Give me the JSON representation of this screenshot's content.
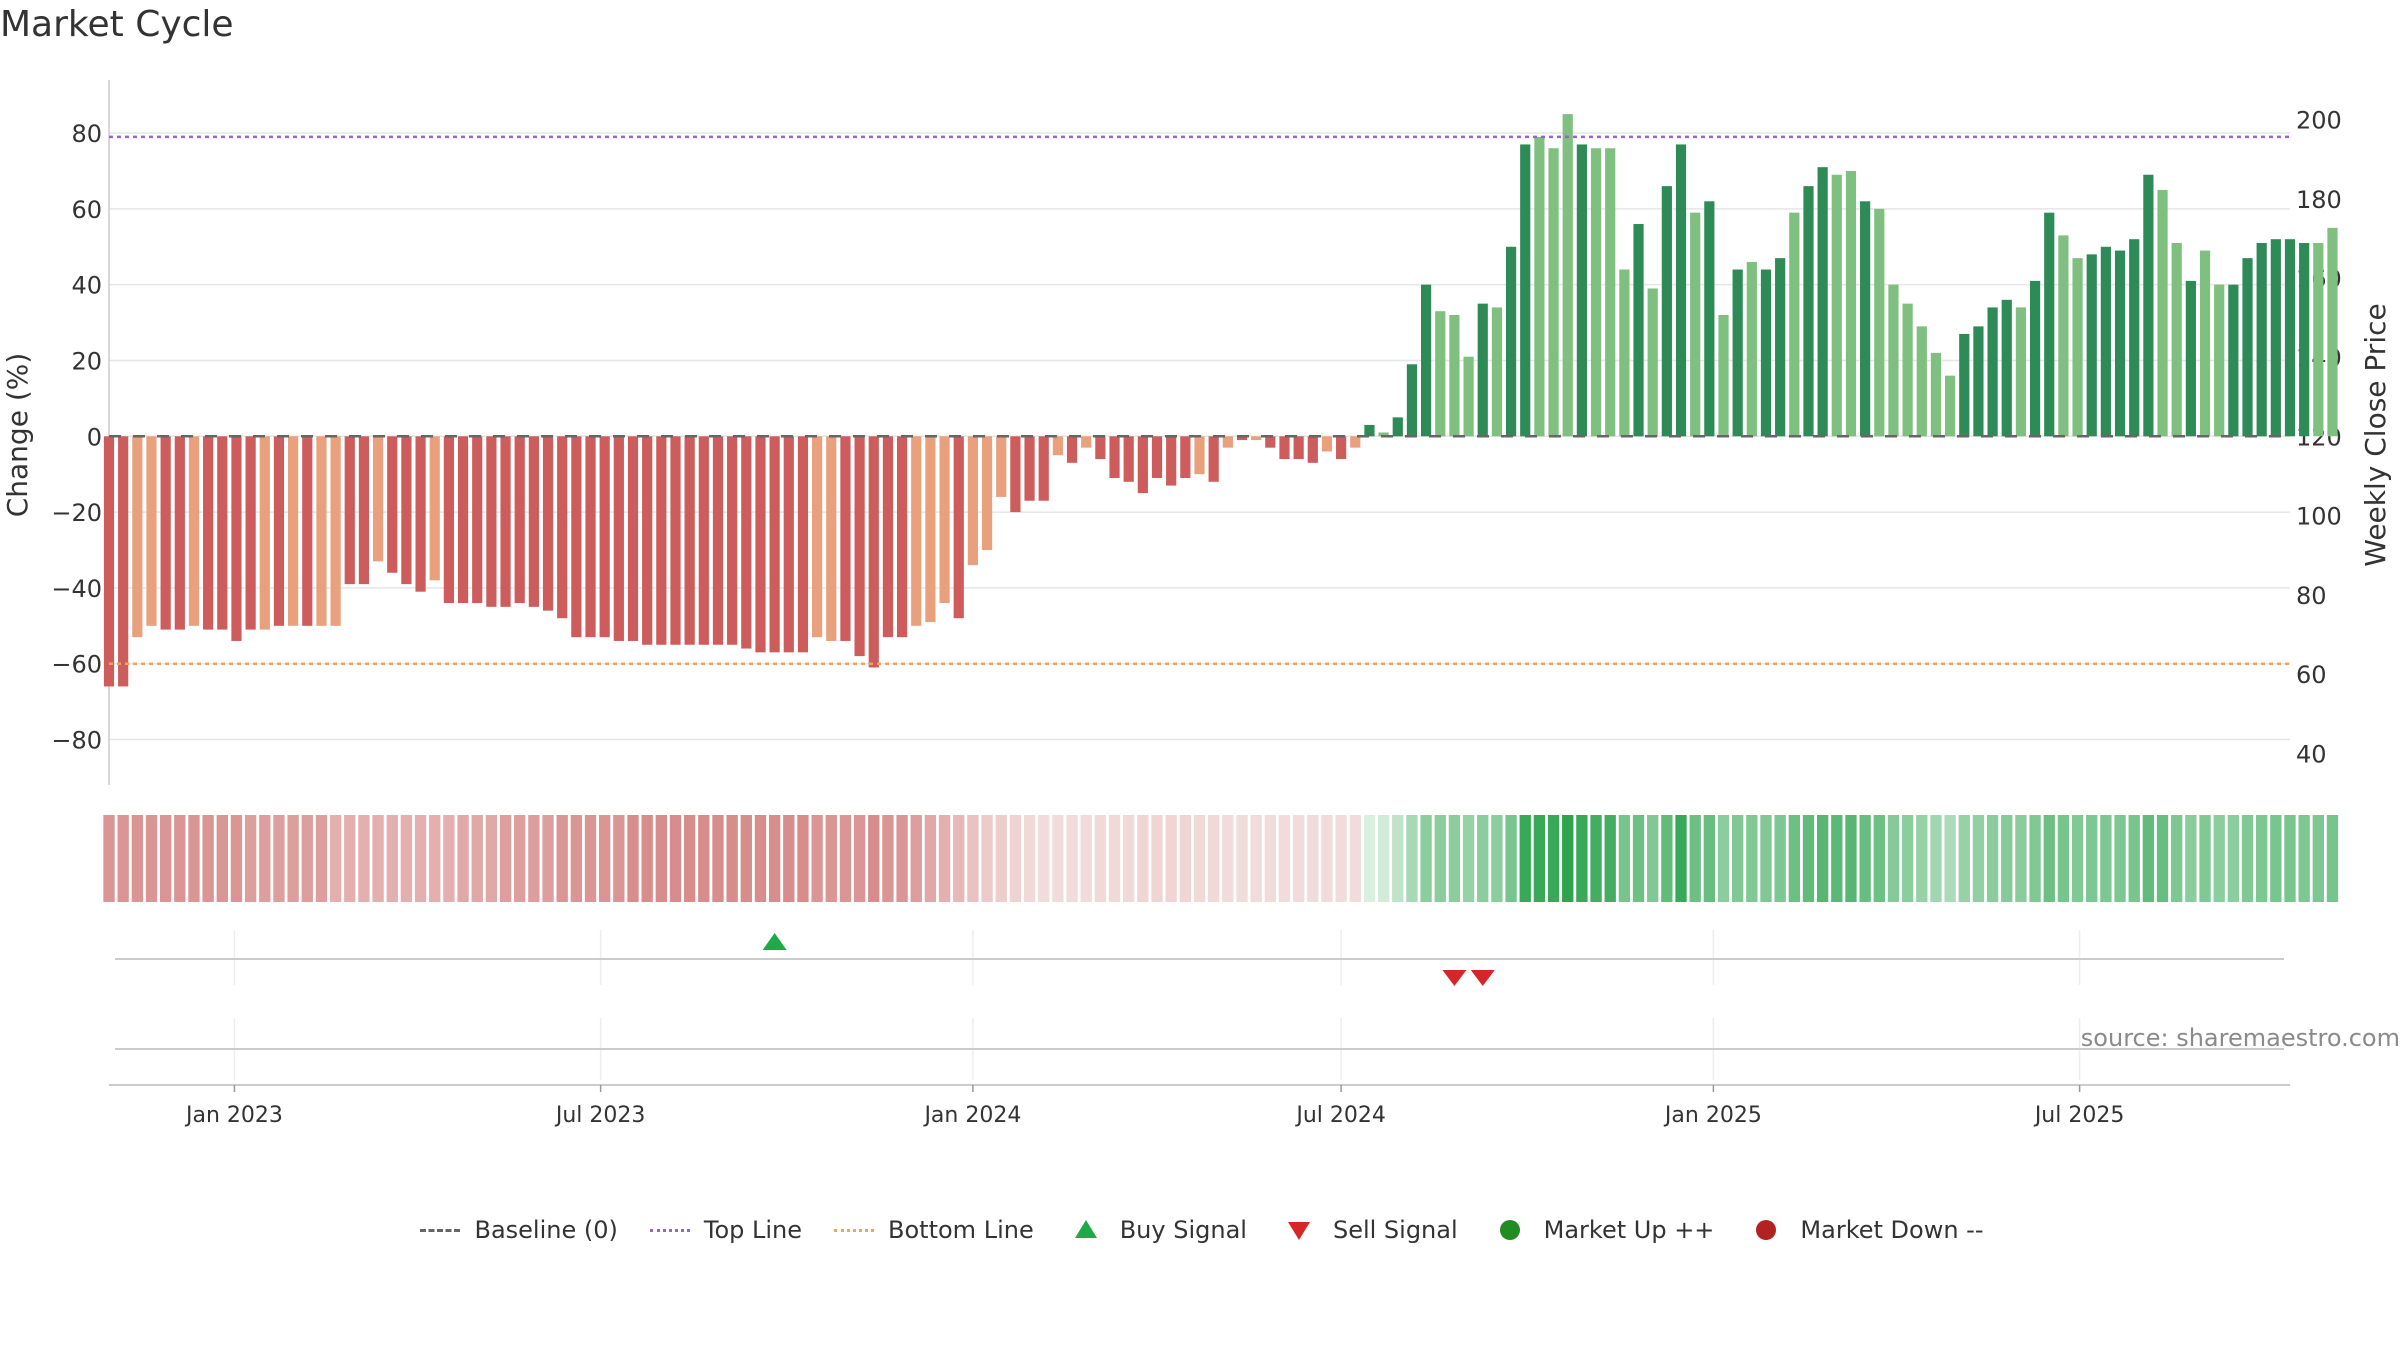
{
  "title": "Market Cycle",
  "source": "source: sharemaestro.com",
  "colors": {
    "neg_dark": "#cd5c5c",
    "neg_light": "#e9a07d",
    "pos_dark": "#2e8b57",
    "pos_light": "#7fbf7f",
    "top_line": "#9467bd",
    "bottom_line": "#f0a35c",
    "baseline": "#666666",
    "buy": "#1faa4a",
    "sell": "#d62728",
    "market_up": "#228b22",
    "market_down": "#b22222"
  },
  "legend": [
    {
      "label": "Baseline (0)",
      "icon": "dash-line-icon"
    },
    {
      "label": "Top Line",
      "icon": "dotted-purple-line-icon"
    },
    {
      "label": "Bottom Line",
      "icon": "dotted-orange-line-icon"
    },
    {
      "label": "Buy Signal",
      "icon": "triangle-up-icon"
    },
    {
      "label": "Sell Signal",
      "icon": "triangle-down-icon"
    },
    {
      "label": "Market Up ++",
      "icon": "green-circle-icon"
    },
    {
      "label": "Market Down --",
      "icon": "red-circle-icon"
    }
  ],
  "chart_data": {
    "type": "bar",
    "title": "Market Cycle",
    "ylabel": "Change (%)",
    "y2label": "Weekly Close Price",
    "ylim": [
      -92,
      94
    ],
    "y2lim": [
      32,
      210
    ],
    "yticks": [
      80,
      60,
      40,
      20,
      0,
      -20,
      -40,
      -60,
      -80
    ],
    "y2ticks": [
      200,
      180,
      160,
      140,
      120,
      100,
      80,
      60,
      40
    ],
    "x_start": "2022-10-31",
    "x_end": "2025-10-13",
    "xticks": [
      {
        "date": "2023-01-01",
        "label": "Jan 2023"
      },
      {
        "date": "2023-07-01",
        "label": "Jul 2023"
      },
      {
        "date": "2024-01-01",
        "label": "Jan 2024"
      },
      {
        "date": "2024-07-01",
        "label": "Jul 2024"
      },
      {
        "date": "2025-01-01",
        "label": "Jan 2025"
      },
      {
        "date": "2025-07-01",
        "label": "Jul 2025"
      }
    ],
    "top_line": 79,
    "bottom_line": -60,
    "baseline": 0,
    "grid": true,
    "legend_position": "bottom",
    "week_start": "2022-10-31",
    "week_step_days": 7,
    "values": [
      -66,
      -66,
      -53,
      -50,
      -51,
      -51,
      -50,
      -51,
      -51,
      -54,
      -51,
      -51,
      -50,
      -50,
      -50,
      -50,
      -50,
      -39,
      -39,
      -33,
      -36,
      -39,
      -41,
      -38,
      -44,
      -44,
      -44,
      -45,
      -45,
      -44,
      -45,
      -46,
      -48,
      -53,
      -53,
      -53,
      -54,
      -54,
      -55,
      -55,
      -55,
      -55,
      -55,
      -55,
      -55,
      -56,
      -57,
      -57,
      -57,
      -57,
      -53,
      -54,
      -54,
      -58,
      -61,
      -53,
      -53,
      -50,
      -49,
      -44,
      -48,
      -34,
      -30,
      -16,
      -20,
      -17,
      -17,
      -5,
      -7,
      -3,
      -6,
      -11,
      -12,
      -15,
      -11,
      -13,
      -11,
      -10,
      -12,
      -3,
      -1,
      -1,
      -3,
      -6,
      -6,
      -7,
      -4,
      -6,
      -3,
      3,
      1,
      5,
      19,
      40,
      33,
      32,
      21,
      35,
      34,
      50,
      77,
      79,
      76,
      85,
      77,
      76,
      76,
      44,
      56,
      39,
      66,
      77,
      59,
      62,
      32,
      44,
      46,
      44,
      47,
      59,
      66,
      71,
      69,
      70,
      62,
      60,
      40,
      35,
      29,
      22,
      16,
      27,
      29,
      34,
      36,
      34,
      41,
      59,
      53,
      47,
      48,
      50,
      49,
      52,
      69,
      65,
      51,
      41,
      49,
      40,
      40,
      47,
      51,
      52,
      52,
      51,
      51,
      55
    ],
    "shades": [
      0,
      0,
      1,
      1,
      0,
      0,
      1,
      0,
      0,
      0,
      0,
      1,
      0,
      1,
      0,
      1,
      1,
      0,
      0,
      1,
      0,
      0,
      0,
      1,
      0,
      0,
      0,
      0,
      0,
      0,
      0,
      0,
      0,
      0,
      0,
      0,
      0,
      0,
      0,
      0,
      0,
      0,
      0,
      0,
      0,
      0,
      0,
      0,
      0,
      0,
      1,
      1,
      0,
      0,
      0,
      0,
      0,
      1,
      1,
      1,
      0,
      1,
      1,
      1,
      0,
      0,
      0,
      1,
      0,
      1,
      0,
      0,
      0,
      0,
      0,
      0,
      0,
      1,
      0,
      1,
      0,
      1,
      0,
      0,
      0,
      0,
      1,
      0,
      1,
      0,
      1,
      0,
      0,
      0,
      1,
      1,
      1,
      0,
      1,
      0,
      0,
      1,
      1,
      1,
      0,
      1,
      1,
      1,
      0,
      1,
      0,
      0,
      1,
      0,
      1,
      0,
      1,
      0,
      0,
      1,
      0,
      0,
      1,
      1,
      0,
      1,
      1,
      1,
      1,
      1,
      1,
      0,
      0,
      0,
      0,
      1,
      0,
      0,
      1,
      1,
      0,
      0,
      0,
      0,
      0,
      1,
      1,
      0,
      1,
      1,
      0,
      0,
      0,
      0,
      0,
      0,
      1,
      1,
      1
    ],
    "regime_strength": [
      0.6,
      0.6,
      0.6,
      0.6,
      0.6,
      0.6,
      0.6,
      0.6,
      0.6,
      0.6,
      0.55,
      0.55,
      0.55,
      0.55,
      0.55,
      0.55,
      0.45,
      0.45,
      0.45,
      0.45,
      0.45,
      0.45,
      0.45,
      0.45,
      0.45,
      0.5,
      0.5,
      0.5,
      0.55,
      0.55,
      0.55,
      0.55,
      0.6,
      0.6,
      0.6,
      0.6,
      0.6,
      0.65,
      0.65,
      0.65,
      0.65,
      0.65,
      0.65,
      0.65,
      0.65,
      0.65,
      0.65,
      0.65,
      0.65,
      0.65,
      0.6,
      0.6,
      0.6,
      0.6,
      0.65,
      0.6,
      0.6,
      0.55,
      0.5,
      0.45,
      0.4,
      0.35,
      0.3,
      0.28,
      0.25,
      0.22,
      0.2,
      0.2,
      0.2,
      0.2,
      0.22,
      0.22,
      0.22,
      0.24,
      0.24,
      0.24,
      0.24,
      0.22,
      0.22,
      0.2,
      0.2,
      0.2,
      0.2,
      0.2,
      0.2,
      0.2,
      0.2,
      0.2,
      0.2,
      0.18,
      0.22,
      0.3,
      0.42,
      0.55,
      0.55,
      0.55,
      0.5,
      0.55,
      0.55,
      0.65,
      0.95,
      0.95,
      0.95,
      1.0,
      0.95,
      0.9,
      0.9,
      0.65,
      0.7,
      0.6,
      0.75,
      0.95,
      0.7,
      0.72,
      0.55,
      0.6,
      0.6,
      0.6,
      0.62,
      0.7,
      0.75,
      0.8,
      0.78,
      0.8,
      0.72,
      0.7,
      0.58,
      0.55,
      0.5,
      0.45,
      0.4,
      0.5,
      0.52,
      0.56,
      0.58,
      0.56,
      0.6,
      0.7,
      0.65,
      0.6,
      0.62,
      0.62,
      0.62,
      0.64,
      0.75,
      0.72,
      0.62,
      0.56,
      0.6,
      0.55,
      0.55,
      0.6,
      0.62,
      0.64,
      0.64,
      0.62,
      0.62,
      0.65
    ],
    "buy_signals": [
      "2023-09-25"
    ],
    "sell_signals": [
      "2024-08-26",
      "2024-09-09"
    ]
  }
}
